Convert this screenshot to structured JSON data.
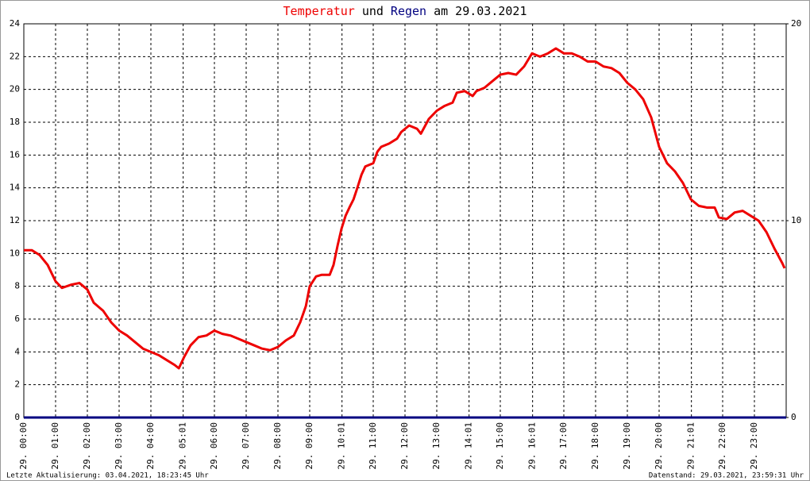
{
  "chart_data": {
    "type": "line",
    "title_join": "und",
    "title_date": "am 29.03.2021",
    "footer_left": "Letzte Aktualisierung: 03.04.2021, 18:23:45 Uhr",
    "footer_right": "Datenstand: 29.03.2021, 23:59:31 Uhr",
    "xlim": [
      0,
      24
    ],
    "xticks": [
      {
        "value": 0,
        "label": "29. 00:00"
      },
      {
        "value": 1,
        "label": "29. 01:00"
      },
      {
        "value": 2,
        "label": "29. 02:00"
      },
      {
        "value": 3,
        "label": "29. 03:00"
      },
      {
        "value": 4,
        "label": "29. 04:00"
      },
      {
        "value": 5.0167,
        "label": "29. 05:01"
      },
      {
        "value": 6,
        "label": "29. 06:00"
      },
      {
        "value": 7,
        "label": "29. 07:00"
      },
      {
        "value": 8,
        "label": "29. 08:00"
      },
      {
        "value": 9,
        "label": "29. 09:00"
      },
      {
        "value": 10.0167,
        "label": "29. 10:01"
      },
      {
        "value": 11,
        "label": "29. 11:00"
      },
      {
        "value": 12,
        "label": "29. 12:00"
      },
      {
        "value": 13,
        "label": "29. 13:00"
      },
      {
        "value": 14.0167,
        "label": "29. 14:01"
      },
      {
        "value": 15,
        "label": "29. 15:00"
      },
      {
        "value": 16.0167,
        "label": "29. 16:01"
      },
      {
        "value": 17,
        "label": "29. 17:00"
      },
      {
        "value": 18,
        "label": "29. 18:00"
      },
      {
        "value": 19,
        "label": "29. 19:00"
      },
      {
        "value": 20,
        "label": "29. 20:00"
      },
      {
        "value": 21.0167,
        "label": "29. 21:01"
      },
      {
        "value": 22,
        "label": "29. 22:00"
      },
      {
        "value": 23,
        "label": "29. 23:00"
      }
    ],
    "ylim": [
      0,
      24
    ],
    "yticks": [
      0,
      2,
      4,
      6,
      8,
      10,
      12,
      14,
      16,
      18,
      20,
      22,
      24
    ],
    "y2lim": [
      0,
      20
    ],
    "y2ticks": [
      0,
      10,
      20
    ],
    "grid": true,
    "series": [
      {
        "name": "Temperatur",
        "color": "#ee0000",
        "x": [
          0,
          0.25,
          0.5,
          0.75,
          1,
          1.2,
          1.5,
          1.75,
          2,
          2.2,
          2.5,
          2.75,
          3,
          3.25,
          3.5,
          3.75,
          4,
          4.25,
          4.5,
          4.75,
          4.88,
          5.05,
          5.25,
          5.5,
          5.75,
          6,
          6.25,
          6.5,
          6.75,
          7,
          7.25,
          7.5,
          7.75,
          8,
          8.25,
          8.5,
          8.7,
          8.88,
          9,
          9.2,
          9.38,
          9.63,
          9.75,
          9.88,
          10,
          10.13,
          10.25,
          10.38,
          10.5,
          10.63,
          10.75,
          11,
          11.13,
          11.25,
          11.5,
          11.75,
          11.88,
          12.13,
          12.38,
          12.5,
          12.75,
          13,
          13.25,
          13.5,
          13.63,
          13.88,
          14.13,
          14.25,
          14.5,
          14.75,
          15,
          15.25,
          15.5,
          15.75,
          16,
          16.25,
          16.5,
          16.75,
          17,
          17.25,
          17.5,
          17.75,
          18,
          18.25,
          18.5,
          18.75,
          19,
          19.25,
          19.5,
          19.75,
          20,
          20.25,
          20.5,
          20.75,
          21,
          21.25,
          21.5,
          21.75,
          21.88,
          22.13,
          22.38,
          22.63,
          22.88,
          23.13,
          23.38,
          23.63,
          23.88,
          23.95
        ],
        "values": [
          10.2,
          10.2,
          9.9,
          9.3,
          8.3,
          7.9,
          8.1,
          8.2,
          7.8,
          7.0,
          6.5,
          5.8,
          5.3,
          5.0,
          4.6,
          4.2,
          4.0,
          3.8,
          3.5,
          3.2,
          3.0,
          3.7,
          4.4,
          4.9,
          5.0,
          5.3,
          5.1,
          5.0,
          4.8,
          4.6,
          4.4,
          4.2,
          4.1,
          4.3,
          4.7,
          5.0,
          5.8,
          6.8,
          8.0,
          8.6,
          8.7,
          8.7,
          9.3,
          10.5,
          11.5,
          12.3,
          12.8,
          13.3,
          14.0,
          14.8,
          15.3,
          15.5,
          16.2,
          16.5,
          16.7,
          17.0,
          17.4,
          17.8,
          17.6,
          17.3,
          18.2,
          18.7,
          19.0,
          19.2,
          19.8,
          19.9,
          19.6,
          19.9,
          20.1,
          20.5,
          20.9,
          21.0,
          20.9,
          21.4,
          22.2,
          22.0,
          22.2,
          22.5,
          22.2,
          22.2,
          22.0,
          21.7,
          21.7,
          21.4,
          21.3,
          21.0,
          20.4,
          20.0,
          19.4,
          18.3,
          16.5,
          15.5,
          15.0,
          14.3,
          13.3,
          12.9,
          12.8,
          12.8,
          12.2,
          12.1,
          12.5,
          12.6,
          12.3,
          12.0,
          11.3,
          10.3,
          9.4,
          9.1
        ]
      },
      {
        "name": "Regen",
        "color": "#000080",
        "axis": "y2",
        "x": [
          0,
          24
        ],
        "values": [
          0,
          0
        ]
      }
    ]
  }
}
